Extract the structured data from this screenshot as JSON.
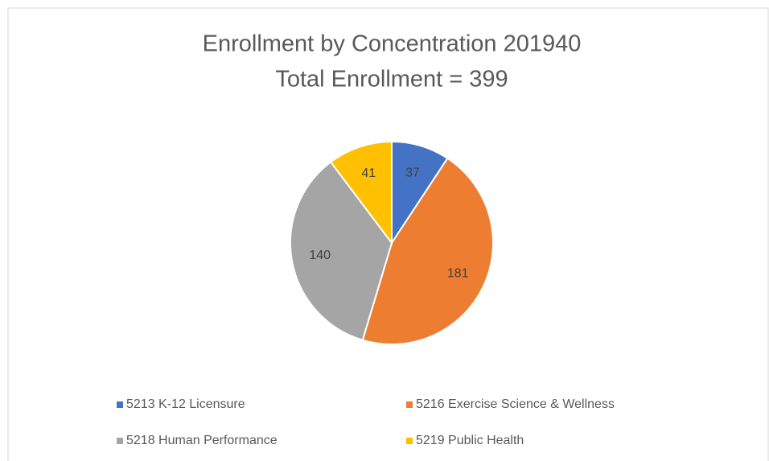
{
  "chart_data": {
    "type": "pie",
    "title": "Enrollment by Concentration 201940",
    "subtitle": "Total Enrollment = 399",
    "categories": [
      "5213 K-12 Licensure",
      "5216 Exercise Science & Wellness",
      "5218 Human Performance",
      "5219 Public Health"
    ],
    "values": [
      37,
      181,
      140,
      41
    ],
    "colors": [
      "#4472c4",
      "#ed7d31",
      "#a5a5a5",
      "#ffc000"
    ],
    "legend": "bottom"
  }
}
